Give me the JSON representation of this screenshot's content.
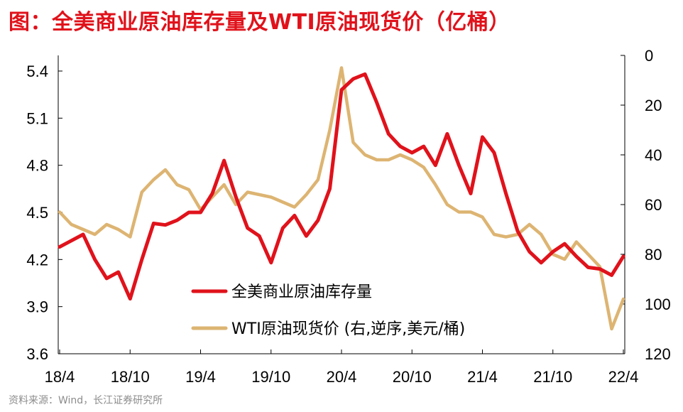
{
  "title": "图：全美商业原油库存量及WTI原油现货价（亿桶）",
  "source": "资料来源：Wind，长江证券研究所",
  "chart_data": {
    "type": "line",
    "title": "图：全美商业原油库存量及WTI原油现货价（亿桶）",
    "x": [
      "2018-04",
      "2018-05",
      "2018-06",
      "2018-07",
      "2018-08",
      "2018-09",
      "2018-10",
      "2018-11",
      "2018-12",
      "2019-01",
      "2019-02",
      "2019-03",
      "2019-04",
      "2019-05",
      "2019-06",
      "2019-07",
      "2019-08",
      "2019-09",
      "2019-10",
      "2019-11",
      "2019-12",
      "2020-01",
      "2020-02",
      "2020-03",
      "2020-04",
      "2020-05",
      "2020-06",
      "2020-07",
      "2020-08",
      "2020-09",
      "2020-10",
      "2020-11",
      "2020-12",
      "2021-01",
      "2021-02",
      "2021-03",
      "2021-04",
      "2021-05",
      "2021-06",
      "2021-07",
      "2021-08",
      "2021-09",
      "2021-10",
      "2021-11",
      "2021-12",
      "2022-01",
      "2022-02",
      "2022-03",
      "2022-04"
    ],
    "x_ticks": [
      "18/4",
      "18/10",
      "19/4",
      "19/10",
      "20/4",
      "20/10",
      "21/4",
      "21/10",
      "22/4"
    ],
    "left_axis": {
      "ylim": [
        3.6,
        5.4
      ],
      "ticks": [
        "3.6",
        "3.9",
        "4.2",
        "4.5",
        "4.8",
        "5.1",
        "5.4"
      ],
      "unit": "亿桶"
    },
    "right_axis": {
      "ylim": [
        0,
        120
      ],
      "reversed": true,
      "ticks": [
        "0",
        "20",
        "40",
        "60",
        "80",
        "100",
        "120"
      ],
      "unit": "美元/桶"
    },
    "legend_position": "bottom-center",
    "series": [
      {
        "name": "全美商业原油库存量",
        "axis": "left",
        "color": "#e0121b",
        "values": [
          4.28,
          4.32,
          4.36,
          4.2,
          4.08,
          4.12,
          3.95,
          4.2,
          4.43,
          4.42,
          4.45,
          4.5,
          4.5,
          4.62,
          4.83,
          4.6,
          4.4,
          4.35,
          4.18,
          4.4,
          4.48,
          4.35,
          4.45,
          4.65,
          5.28,
          5.35,
          5.38,
          5.2,
          5.0,
          4.92,
          4.88,
          4.92,
          4.8,
          5.0,
          4.8,
          4.62,
          4.98,
          4.88,
          4.62,
          4.38,
          4.25,
          4.18,
          4.25,
          4.3,
          4.22,
          4.15,
          4.14,
          4.1,
          4.22
        ]
      },
      {
        "name": "WTI原油现货价 (右,逆序,美元/桶)",
        "axis": "right",
        "color": "#ddb472",
        "values": [
          63,
          68,
          70,
          72,
          68,
          70,
          73,
          55,
          50,
          46,
          52,
          54,
          62,
          57,
          52,
          60,
          55,
          56,
          57,
          59,
          61,
          56,
          50,
          30,
          5,
          35,
          40,
          42,
          42,
          40,
          42,
          45,
          52,
          60,
          63,
          63,
          65,
          72,
          73,
          72,
          68,
          72,
          80,
          82,
          75,
          80,
          85,
          110,
          98
        ]
      }
    ]
  }
}
